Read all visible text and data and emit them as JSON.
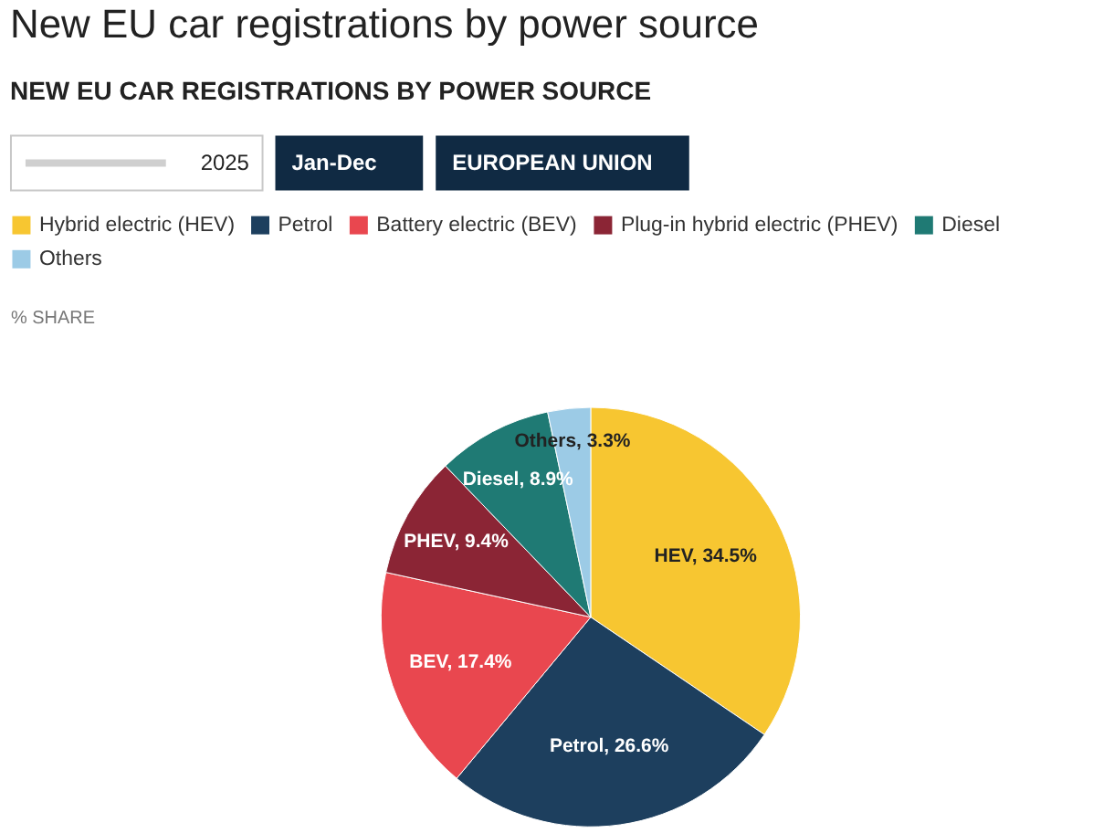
{
  "chart_data": {
    "type": "pie",
    "title": "New EU car registrations by power source",
    "subtitle": "NEW EU CAR REGISTRATIONS BY POWER SOURCE",
    "categories": [
      "Hybrid electric (HEV)",
      "Petrol",
      "Battery electric (BEV)",
      "Plug-in hybrid electric (PHEV)",
      "Diesel",
      "Others"
    ],
    "values": [
      34.5,
      26.6,
      17.4,
      9.4,
      8.9,
      3.3
    ],
    "colors": [
      "#f7c631",
      "#1d3f5e",
      "#e9474f",
      "#8b2535",
      "#1f7a74",
      "#9ccbe6"
    ],
    "value_labels": [
      "HEV, 34.5%",
      "Petrol, 26.6%",
      "BEV, 17.4%",
      "PHEV, 9.4%",
      "Diesel, 8.9%",
      "Others, 3.3%"
    ],
    "legend": "top",
    "annotations": [
      "2025",
      "Jan-Dec",
      "EUROPEAN UNION",
      "% SHARE"
    ]
  }
}
